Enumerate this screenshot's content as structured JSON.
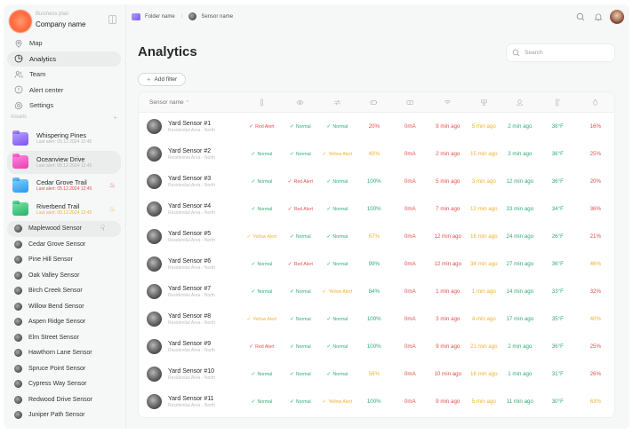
{
  "sidebar": {
    "plan": "Business plan",
    "company": "Company name",
    "nav": [
      {
        "label": "Map",
        "icon": "map-pin-icon"
      },
      {
        "label": "Analytics",
        "icon": "pie-chart-icon",
        "active": true
      },
      {
        "label": "Team",
        "icon": "team-icon"
      },
      {
        "label": "Alert center",
        "icon": "alert-icon"
      },
      {
        "label": "Settings",
        "icon": "gear-icon"
      }
    ],
    "assets_label": "Assets",
    "assets_add": "+",
    "folders": [
      {
        "name": "Whispering Pines",
        "last_alert": "Last alert: 05.12.2024 12:45",
        "color": "#8b6cf5",
        "alert": ""
      },
      {
        "name": "Oceanview Drive",
        "last_alert": "Last alert: 05.12.2024 12:45",
        "color": "#f04fc0",
        "alert": ""
      },
      {
        "name": "Cedar Grove Trail",
        "last_alert": "Last alert: 05.12.2024 12:45",
        "color": "#3aa6f0",
        "alert": "red"
      },
      {
        "name": "Riverbend Trail",
        "last_alert": "Last alert: 05.12.2024 12:45",
        "color": "#34c07a",
        "alert": "yellow"
      }
    ],
    "sensors": [
      "Maplewood Sensor",
      "Cedar Grove Sensor",
      "Pine Hill Sensor",
      "Oak Valley Sensor",
      "Birch Creek Sensor",
      "Willow Bend Sensor",
      "Aspen Ridge Sensor",
      "Elm Street Sensor",
      "Hawthorn Lane Sensor",
      "Spruce Point Sensor",
      "Cypress Way Sensor",
      "Redwood Drive Sensor",
      "Juniper Path Sensor"
    ]
  },
  "topbar": {
    "crumb_folder": "Folder name",
    "crumb_sep": "/",
    "crumb_sensor": "Sensor name"
  },
  "main": {
    "title": "Analytics",
    "search_placeholder": "Search",
    "add_filter": "Add filter",
    "table": {
      "name_header": "Sensor name",
      "icon_headers": [
        "thermometer-icon",
        "eye-icon",
        "sliders-icon",
        "battery-icon",
        "current-icon",
        "wifi-icon",
        "gateway-icon",
        "location-icon",
        "temperature-icon",
        "humidity-drop-icon"
      ],
      "rows": [
        {
          "name": "Yard Sensor #1",
          "loc": "Residential Area - North",
          "s": [
            [
              "Red Alert",
              "red"
            ],
            [
              "Normal",
              "green"
            ],
            [
              "Normal",
              "green"
            ]
          ],
          "v": [
            [
              "20%",
              "red"
            ],
            [
              "0mA",
              "red"
            ],
            [
              "9 min ago",
              "red"
            ],
            [
              "5 min ago",
              "yellow"
            ],
            [
              "2 min ago",
              "green"
            ],
            [
              "38°F",
              "green"
            ],
            [
              "16%",
              "red"
            ]
          ]
        },
        {
          "name": "Yard Sensor #2",
          "loc": "Residential Area - North",
          "s": [
            [
              "Normal",
              "green"
            ],
            [
              "Normal",
              "green"
            ],
            [
              "Yellow Alert",
              "yellow"
            ]
          ],
          "v": [
            [
              "43%",
              "yellow"
            ],
            [
              "0mA",
              "red"
            ],
            [
              "2 min ago",
              "red"
            ],
            [
              "15 min ago",
              "yellow"
            ],
            [
              "3 min ago",
              "green"
            ],
            [
              "36°F",
              "green"
            ],
            [
              "25%",
              "red"
            ]
          ]
        },
        {
          "name": "Yard Sensor #3",
          "loc": "Residential Area - North",
          "s": [
            [
              "Normal",
              "green"
            ],
            [
              "Red Alert",
              "red"
            ],
            [
              "Normal",
              "green"
            ]
          ],
          "v": [
            [
              "100%",
              "green"
            ],
            [
              "0mA",
              "red"
            ],
            [
              "5 min ago",
              "red"
            ],
            [
              "3 min ago",
              "yellow"
            ],
            [
              "12 min ago",
              "green"
            ],
            [
              "36°F",
              "green"
            ],
            [
              "20%",
              "red"
            ]
          ]
        },
        {
          "name": "Yard Sensor #4",
          "loc": "Residential Area - North",
          "s": [
            [
              "Normal",
              "green"
            ],
            [
              "Red Alert",
              "red"
            ],
            [
              "Normal",
              "green"
            ]
          ],
          "v": [
            [
              "100%",
              "green"
            ],
            [
              "0mA",
              "red"
            ],
            [
              "7 min ago",
              "red"
            ],
            [
              "12 min ago",
              "yellow"
            ],
            [
              "33 min ago",
              "green"
            ],
            [
              "34°F",
              "green"
            ],
            [
              "36%",
              "red"
            ]
          ]
        },
        {
          "name": "Yard Sensor #5",
          "loc": "Residential Area - North",
          "s": [
            [
              "Yellow Alert",
              "yellow"
            ],
            [
              "Normal",
              "green"
            ],
            [
              "Normal",
              "green"
            ]
          ],
          "v": [
            [
              "67%",
              "yellow"
            ],
            [
              "0mA",
              "red"
            ],
            [
              "12 min ago",
              "red"
            ],
            [
              "16 min ago",
              "yellow"
            ],
            [
              "24 min ago",
              "green"
            ],
            [
              "26°F",
              "green"
            ],
            [
              "21%",
              "red"
            ]
          ]
        },
        {
          "name": "Yard Sensor #6",
          "loc": "Residential Area - North",
          "s": [
            [
              "Normal",
              "green"
            ],
            [
              "Red Alert",
              "red"
            ],
            [
              "Normal",
              "green"
            ]
          ],
          "v": [
            [
              "99%",
              "green"
            ],
            [
              "0mA",
              "red"
            ],
            [
              "12 min ago",
              "red"
            ],
            [
              "34 min ago",
              "yellow"
            ],
            [
              "27 min ago",
              "green"
            ],
            [
              "36°F",
              "green"
            ],
            [
              "46%",
              "yellow"
            ]
          ]
        },
        {
          "name": "Yard Sensor #7",
          "loc": "Residential Area - North",
          "s": [
            [
              "Normal",
              "green"
            ],
            [
              "Normal",
              "green"
            ],
            [
              "Yellow Alert",
              "yellow"
            ]
          ],
          "v": [
            [
              "84%",
              "green"
            ],
            [
              "0mA",
              "red"
            ],
            [
              "1 min ago",
              "red"
            ],
            [
              "1 min ago",
              "yellow"
            ],
            [
              "14 min ago",
              "green"
            ],
            [
              "33°F",
              "green"
            ],
            [
              "32%",
              "red"
            ]
          ]
        },
        {
          "name": "Yard Sensor #8",
          "loc": "Residential Area - North",
          "s": [
            [
              "Yellow Alert",
              "yellow"
            ],
            [
              "Normal",
              "green"
            ],
            [
              "Normal",
              "green"
            ]
          ],
          "v": [
            [
              "100%",
              "green"
            ],
            [
              "0mA",
              "red"
            ],
            [
              "3 min ago",
              "red"
            ],
            [
              "4 min ago",
              "yellow"
            ],
            [
              "17 min ago",
              "green"
            ],
            [
              "35°F",
              "green"
            ],
            [
              "40%",
              "yellow"
            ]
          ]
        },
        {
          "name": "Yard Sensor #9",
          "loc": "Residential Area - North",
          "s": [
            [
              "Red Alert",
              "red"
            ],
            [
              "Normal",
              "green"
            ],
            [
              "Normal",
              "green"
            ]
          ],
          "v": [
            [
              "100%",
              "green"
            ],
            [
              "0mA",
              "red"
            ],
            [
              "9 min ago",
              "red"
            ],
            [
              "21 min ago",
              "yellow"
            ],
            [
              "2 min ago",
              "green"
            ],
            [
              "36°F",
              "green"
            ],
            [
              "25%",
              "red"
            ]
          ]
        },
        {
          "name": "Yard Sensor #10",
          "loc": "Residential Area - North",
          "s": [
            [
              "Normal",
              "green"
            ],
            [
              "Normal",
              "green"
            ],
            [
              "Normal",
              "green"
            ]
          ],
          "v": [
            [
              "56%",
              "yellow"
            ],
            [
              "0mA",
              "red"
            ],
            [
              "10 min ago",
              "red"
            ],
            [
              "16 min ago",
              "yellow"
            ],
            [
              "1 min ago",
              "green"
            ],
            [
              "31°F",
              "green"
            ],
            [
              "26%",
              "red"
            ]
          ]
        },
        {
          "name": "Yard Sensor #11",
          "loc": "Residential Area - North",
          "s": [
            [
              "Normal",
              "green"
            ],
            [
              "Normal",
              "green"
            ],
            [
              "Yellow Alert",
              "yellow"
            ]
          ],
          "v": [
            [
              "100%",
              "green"
            ],
            [
              "0mA",
              "red"
            ],
            [
              "9 min ago",
              "red"
            ],
            [
              "5 min ago",
              "yellow"
            ],
            [
              "11 min ago",
              "green"
            ],
            [
              "30°F",
              "green"
            ],
            [
              "63%",
              "yellow"
            ]
          ]
        }
      ]
    }
  },
  "colors": {
    "green": "#2fae78",
    "red": "#e55050",
    "yellow": "#f2b233",
    "logo": "#ff6a3d"
  }
}
